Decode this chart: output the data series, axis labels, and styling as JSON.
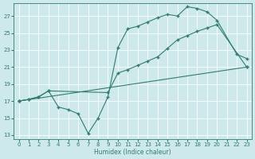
{
  "xlabel": "Humidex (Indice chaleur)",
  "bg_color": "#cee9ec",
  "grid_color": "#ffffff",
  "line_color": "#2e7d6e",
  "xlim_min": -0.5,
  "xlim_max": 23.5,
  "ylim_min": 12.5,
  "ylim_max": 28.5,
  "xticks": [
    0,
    1,
    2,
    3,
    4,
    5,
    6,
    7,
    8,
    9,
    10,
    11,
    12,
    13,
    14,
    15,
    16,
    17,
    18,
    19,
    20,
    21,
    22,
    23
  ],
  "yticks": [
    13,
    15,
    17,
    19,
    21,
    23,
    25,
    27
  ],
  "line1_x": [
    0,
    23
  ],
  "line1_y": [
    17,
    21
  ],
  "line2_x": [
    0,
    1,
    2,
    3,
    4,
    5,
    6,
    7,
    8,
    9,
    10,
    11,
    12,
    13,
    14,
    15,
    16,
    17,
    18,
    19,
    20,
    22,
    23
  ],
  "line2_y": [
    17,
    17.2,
    17.5,
    18.2,
    16.3,
    16.0,
    15.5,
    13.2,
    15.0,
    17.5,
    23.3,
    25.5,
    25.8,
    26.3,
    26.8,
    27.2,
    27.0,
    28.1,
    27.9,
    27.5,
    26.5,
    22.5,
    22.0
  ],
  "line3_x": [
    0,
    1,
    2,
    3,
    9,
    10,
    11,
    12,
    13,
    14,
    15,
    16,
    17,
    18,
    19,
    20,
    23
  ],
  "line3_y": [
    17,
    17.2,
    17.5,
    18.2,
    18.0,
    20.3,
    20.7,
    21.2,
    21.7,
    22.2,
    23.2,
    24.2,
    24.7,
    25.2,
    25.6,
    26.0,
    21.0
  ]
}
